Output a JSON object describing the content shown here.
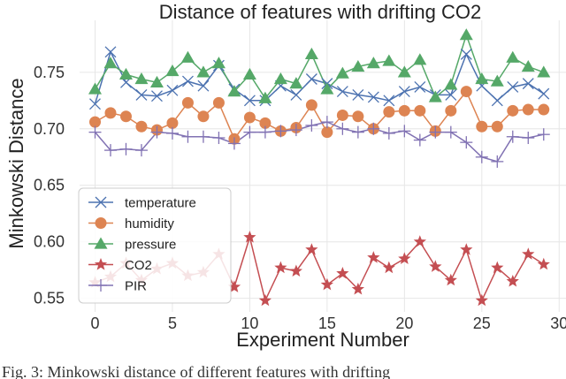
{
  "chart_data": {
    "type": "line",
    "title": "Distance of features with drifting CO2",
    "xlabel": "Experiment Number",
    "ylabel": "Minkowski Distance",
    "xlim": [
      -1,
      30.5
    ],
    "ylim": [
      0.538,
      0.796
    ],
    "xticks": [
      0,
      5,
      10,
      15,
      20,
      25,
      30
    ],
    "yticks": [
      0.55,
      0.6,
      0.65,
      0.7,
      0.75
    ],
    "ytick_labels": [
      "0.55",
      "0.60",
      "0.65",
      "0.70",
      "0.75"
    ],
    "grid": true,
    "legend_position": "lower-left",
    "x": [
      0,
      1,
      2,
      3,
      4,
      5,
      6,
      7,
      8,
      9,
      10,
      11,
      12,
      13,
      14,
      15,
      16,
      17,
      18,
      19,
      20,
      21,
      22,
      23,
      24,
      25,
      26,
      27,
      28,
      29
    ],
    "series": [
      {
        "name": "temperature",
        "color": "#4c72b0",
        "marker": "x",
        "values": [
          0.722,
          0.768,
          0.741,
          0.73,
          0.729,
          0.734,
          0.742,
          0.738,
          0.756,
          0.735,
          0.725,
          0.725,
          0.738,
          0.73,
          0.744,
          0.74,
          0.733,
          0.73,
          0.728,
          0.725,
          0.733,
          0.737,
          0.73,
          0.73,
          0.766,
          0.738,
          0.725,
          0.737,
          0.74,
          0.731
        ]
      },
      {
        "name": "humidity",
        "color": "#dd8452",
        "marker": "o",
        "values": [
          0.706,
          0.714,
          0.711,
          0.702,
          0.699,
          0.705,
          0.723,
          0.711,
          0.723,
          0.691,
          0.71,
          0.705,
          0.698,
          0.701,
          0.721,
          0.697,
          0.712,
          0.711,
          0.7,
          0.715,
          0.716,
          0.716,
          0.698,
          0.716,
          0.733,
          0.702,
          0.702,
          0.716,
          0.717,
          0.717
        ]
      },
      {
        "name": "pressure",
        "color": "#55a868",
        "marker": "^",
        "values": [
          0.735,
          0.758,
          0.748,
          0.744,
          0.741,
          0.751,
          0.763,
          0.75,
          0.758,
          0.733,
          0.748,
          0.727,
          0.744,
          0.74,
          0.766,
          0.735,
          0.749,
          0.755,
          0.758,
          0.76,
          0.75,
          0.761,
          0.728,
          0.739,
          0.783,
          0.744,
          0.742,
          0.763,
          0.755,
          0.75
        ]
      },
      {
        "name": "CO2",
        "color": "#c44e52",
        "marker": "*",
        "values": [
          0.564,
          0.569,
          0.581,
          0.566,
          0.576,
          0.581,
          0.57,
          0.573,
          0.589,
          0.56,
          0.604,
          0.548,
          0.577,
          0.574,
          0.593,
          0.562,
          0.572,
          0.558,
          0.586,
          0.577,
          0.585,
          0.6,
          0.578,
          0.566,
          0.593,
          0.548,
          0.577,
          0.565,
          0.589,
          0.58
        ]
      },
      {
        "name": "PIR",
        "color": "#8172b3",
        "marker": "+",
        "values": [
          0.697,
          0.681,
          0.682,
          0.681,
          0.697,
          0.696,
          0.693,
          0.693,
          0.692,
          0.687,
          0.697,
          0.697,
          0.698,
          0.699,
          0.703,
          0.706,
          0.7,
          0.697,
          0.7,
          0.696,
          0.698,
          0.69,
          0.697,
          0.697,
          0.688,
          0.675,
          0.671,
          0.693,
          0.692,
          0.695
        ]
      }
    ]
  },
  "caption": "Fig. 3: Minkowski distance of different features with drifting"
}
